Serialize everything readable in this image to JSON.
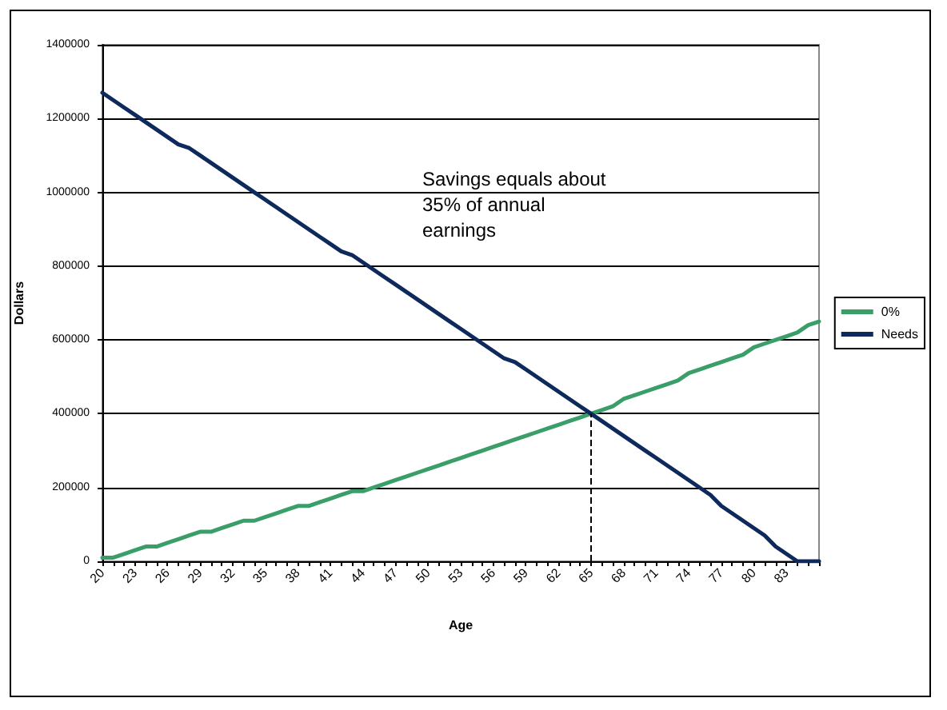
{
  "chart_data": {
    "type": "line",
    "xlabel": "Age",
    "ylabel": "Dollars",
    "categories": [
      "20",
      null,
      null,
      "23",
      null,
      null,
      "26",
      null,
      null,
      "29",
      null,
      null,
      "32",
      null,
      null,
      "35",
      null,
      null,
      "38",
      null,
      null,
      "41",
      null,
      null,
      "44",
      null,
      null,
      "47",
      null,
      null,
      "50",
      null,
      null,
      "53",
      null,
      null,
      "56",
      null,
      null,
      "59",
      null,
      null,
      "62",
      null,
      null,
      "65",
      null,
      null,
      "68",
      null,
      null,
      "71",
      null,
      null,
      "74",
      null,
      null,
      "77",
      null,
      null,
      "80",
      null,
      null,
      "83",
      null,
      null,
      null
    ],
    "series": [
      {
        "name": "0%",
        "color": "#3a9e68",
        "values": [
          10000,
          10000,
          20000,
          30000,
          40000,
          40000,
          50000,
          60000,
          70000,
          80000,
          80000,
          90000,
          100000,
          110000,
          110000,
          120000,
          130000,
          140000,
          150000,
          150000,
          160000,
          170000,
          180000,
          190000,
          190000,
          200000,
          210000,
          220000,
          230000,
          240000,
          250000,
          260000,
          270000,
          280000,
          290000,
          300000,
          310000,
          320000,
          330000,
          340000,
          350000,
          360000,
          370000,
          380000,
          390000,
          400000,
          410000,
          420000,
          440000,
          450000,
          460000,
          470000,
          480000,
          490000,
          510000,
          520000,
          530000,
          540000,
          550000,
          560000,
          580000,
          590000,
          600000,
          610000,
          620000,
          640000,
          650000
        ]
      },
      {
        "name": "Needs",
        "color": "#0e2a5c",
        "values": [
          1270000,
          1250000,
          1230000,
          1210000,
          1190000,
          1170000,
          1150000,
          1130000,
          1120000,
          1100000,
          1080000,
          1060000,
          1040000,
          1020000,
          1000000,
          980000,
          960000,
          940000,
          920000,
          900000,
          880000,
          860000,
          840000,
          830000,
          810000,
          790000,
          770000,
          750000,
          730000,
          710000,
          690000,
          670000,
          650000,
          630000,
          610000,
          590000,
          570000,
          550000,
          540000,
          520000,
          500000,
          480000,
          460000,
          440000,
          420000,
          400000,
          380000,
          360000,
          340000,
          320000,
          300000,
          280000,
          260000,
          240000,
          220000,
          200000,
          180000,
          150000,
          130000,
          110000,
          90000,
          70000,
          40000,
          20000,
          0,
          0,
          0
        ]
      }
    ],
    "ylim": [
      0,
      1400000
    ],
    "yticks": [
      0,
      200000,
      400000,
      600000,
      800000,
      1000000,
      1200000,
      1400000
    ],
    "grid": "y",
    "legend": "right",
    "marker": "none",
    "line_style": "solid",
    "ref_lines": [
      {
        "axis": "x",
        "value": "65",
        "line_style": "dashed",
        "color": "#000000"
      }
    ],
    "annotations": [
      "Savings equals about\n35% of annual\nearnings"
    ]
  }
}
